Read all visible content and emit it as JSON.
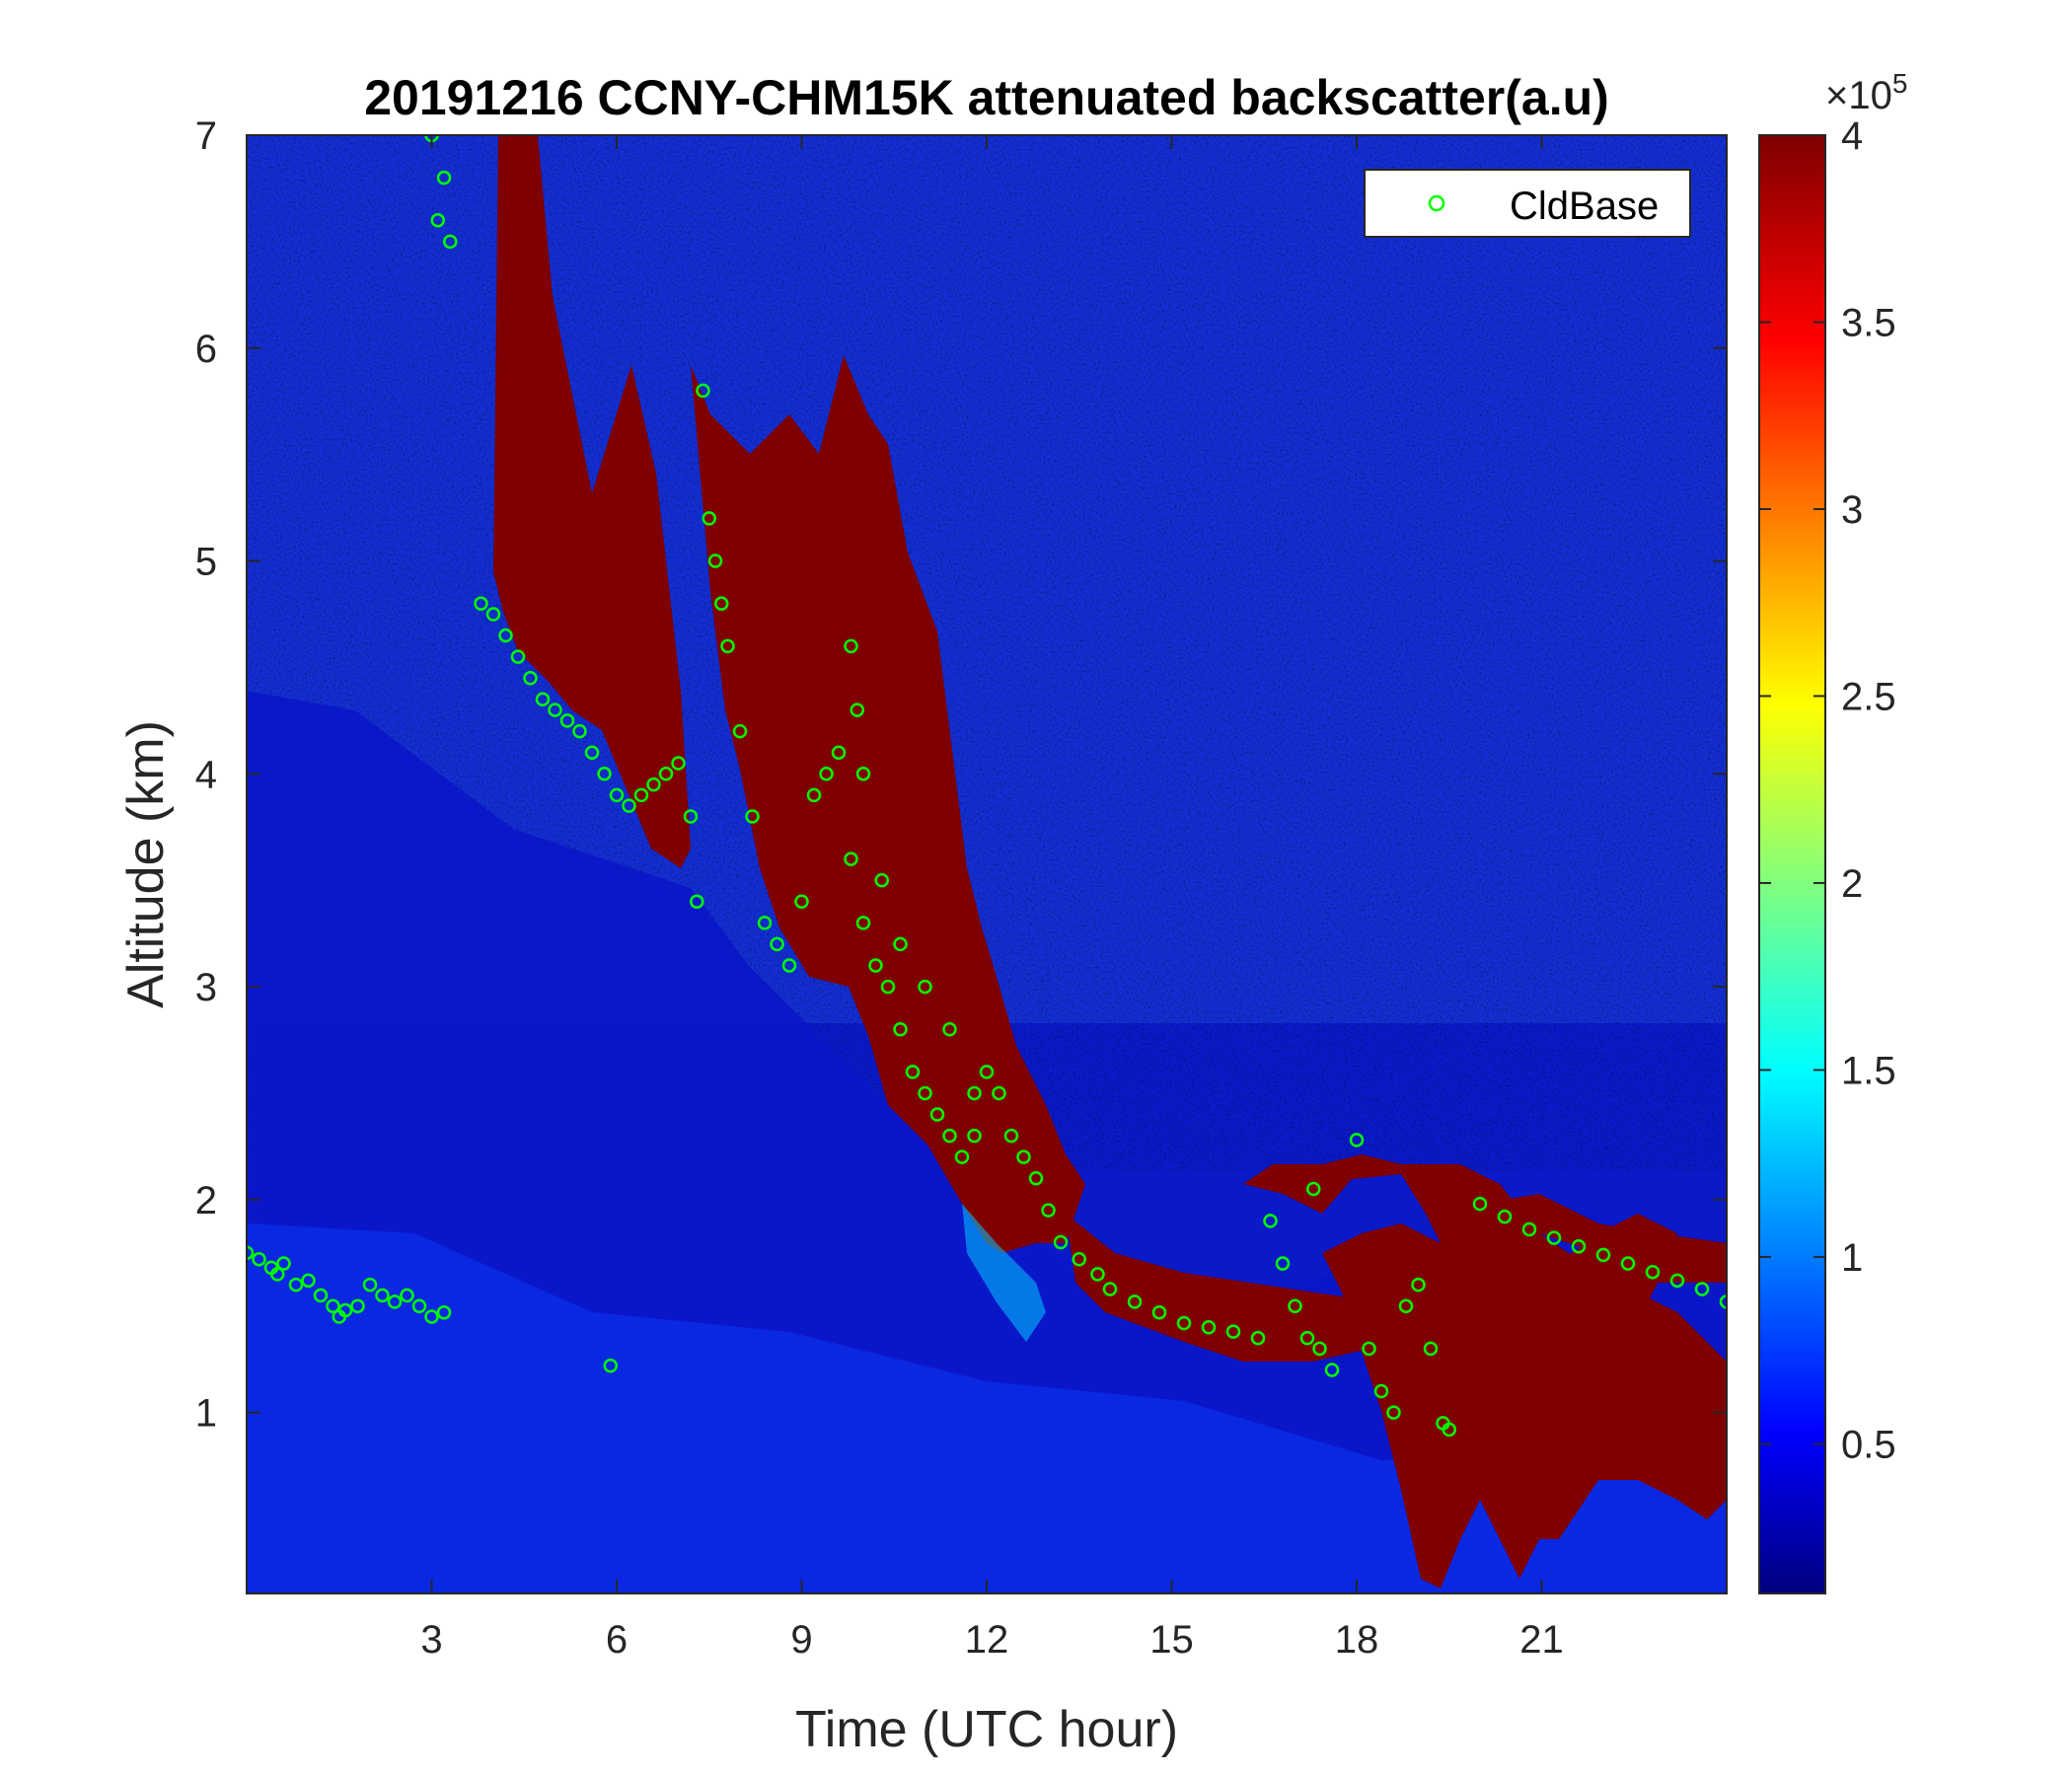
{
  "chart_data": {
    "type": "heatmap",
    "title": "20191216 CCNY-CHM15K attenuated backscatter(a.u)",
    "xlabel": "Time (UTC hour)",
    "ylabel": "Altitude (km)",
    "xlim": [
      0,
      24
    ],
    "ylim": [
      0.15,
      7
    ],
    "xticks": [
      3,
      6,
      9,
      12,
      15,
      18,
      21
    ],
    "yticks": [
      1,
      2,
      3,
      4,
      5,
      6,
      7
    ],
    "colorbar": {
      "colormap": "jet",
      "range": [
        0.1,
        4
      ],
      "ticks": [
        "0.5",
        "1",
        "1.5",
        "2",
        "2.5",
        "3",
        "3.5",
        "4"
      ],
      "tick_values": [
        0.5,
        1,
        1.5,
        2,
        2.5,
        3,
        3.5,
        4
      ],
      "exponent_label": "×10",
      "exponent": "5"
    },
    "legend": {
      "placement": "top-right",
      "entries": [
        "CldBase"
      ]
    },
    "series": [
      {
        "name": "CldBase",
        "marker": "circle",
        "color": "#00ff00",
        "x": [
          0.0,
          0.2,
          0.4,
          0.5,
          0.6,
          0.8,
          1.0,
          1.2,
          1.4,
          1.5,
          1.6,
          1.8,
          2.0,
          2.2,
          2.4,
          2.6,
          2.8,
          3.0,
          3.2,
          3.0,
          3.1,
          3.2,
          3.3,
          3.8,
          4.0,
          4.2,
          4.4,
          4.6,
          4.8,
          5.0,
          5.2,
          5.4,
          5.6,
          5.8,
          6.0,
          6.2,
          6.4,
          6.6,
          6.8,
          7.0,
          7.2,
          7.3,
          5.9,
          7.4,
          7.5,
          7.6,
          7.7,
          7.8,
          8.0,
          8.2,
          8.4,
          8.6,
          8.8,
          9.0,
          9.2,
          9.4,
          9.6,
          9.8,
          10.0,
          10.2,
          10.4,
          10.6,
          10.8,
          11.0,
          11.2,
          11.4,
          11.6,
          11.8,
          12.0,
          12.2,
          12.4,
          12.6,
          12.8,
          13.0,
          9.8,
          9.9,
          10.0,
          10.3,
          10.6,
          11.0,
          11.4,
          11.8,
          13.2,
          13.5,
          13.8,
          14.0,
          14.4,
          14.8,
          15.2,
          15.6,
          16.0,
          16.4,
          16.6,
          16.8,
          17.0,
          17.2,
          17.4,
          17.6,
          17.3,
          18.0,
          18.2,
          18.4,
          18.6,
          18.8,
          19.0,
          19.2,
          19.4,
          19.5,
          20.0,
          20.4,
          20.8,
          21.2,
          21.6,
          22.0,
          22.4,
          22.8,
          23.2,
          23.6,
          24.0
        ],
        "y": [
          1.75,
          1.72,
          1.68,
          1.65,
          1.7,
          1.6,
          1.62,
          1.55,
          1.5,
          1.45,
          1.48,
          1.5,
          1.6,
          1.55,
          1.52,
          1.55,
          1.5,
          1.45,
          1.47,
          7.0,
          6.6,
          6.8,
          6.5,
          4.8,
          4.75,
          4.65,
          4.55,
          4.45,
          4.35,
          4.3,
          4.25,
          4.2,
          4.1,
          4.0,
          3.9,
          3.85,
          3.9,
          3.95,
          4.0,
          4.05,
          3.8,
          3.4,
          1.22,
          5.8,
          5.2,
          5.0,
          4.8,
          4.6,
          4.2,
          3.8,
          3.3,
          3.2,
          3.1,
          3.4,
          3.9,
          4.0,
          4.1,
          3.6,
          3.3,
          3.1,
          3.0,
          2.8,
          2.6,
          2.5,
          2.4,
          2.3,
          2.2,
          2.3,
          2.6,
          2.5,
          2.3,
          2.2,
          2.1,
          1.95,
          4.6,
          4.3,
          4.0,
          3.5,
          3.2,
          3.0,
          2.8,
          2.5,
          1.8,
          1.72,
          1.65,
          1.58,
          1.52,
          1.47,
          1.42,
          1.4,
          1.38,
          1.35,
          1.9,
          1.7,
          1.5,
          1.35,
          1.3,
          1.2,
          2.05,
          2.28,
          1.3,
          1.1,
          1.0,
          1.5,
          1.6,
          1.3,
          0.95,
          0.92,
          1.98,
          1.92,
          1.86,
          1.82,
          1.78,
          1.74,
          1.7,
          1.66,
          1.62,
          1.58,
          1.52
        ]
      }
    ]
  }
}
